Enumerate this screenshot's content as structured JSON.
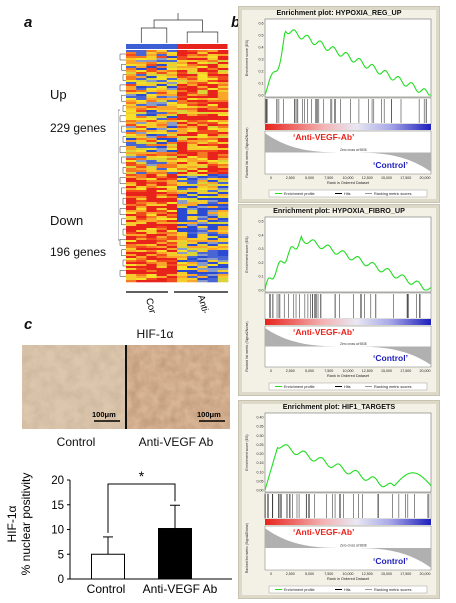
{
  "panels": {
    "a": "a",
    "b": "b",
    "c": "c"
  },
  "heatmap": {
    "up_label": "Up",
    "up_count": "229 genes",
    "down_label": "Down",
    "down_count": "196 genes",
    "group_control": "Control",
    "group_treated": "Anti-VEGF Ab",
    "colors": {
      "high": "#e8231b",
      "mid": "#f6e02a",
      "low": "#2a4bd1"
    }
  },
  "gsea": [
    {
      "title": "Enrichment plot: HYPOXIA_REG_UP",
      "yaxis_label": "Enrichment score (ES)",
      "yticks": [
        "0.6",
        "0.5",
        "0.4",
        "0.3",
        "0.2",
        "0.1",
        "0.0"
      ],
      "ranked_label": "Ranked list metric (Signal2Noise)",
      "left_tag": "‘Anti-VEGF-Ab’",
      "right_tag": "‘Control’",
      "zero_cross": "Zero cross at 9838",
      "xticks": [
        "0",
        "2,500",
        "5,000",
        "7,500",
        "10,000",
        "12,500",
        "15,000",
        "17,500",
        "20,000"
      ],
      "xlabel": "Rank in Ordered Dataset",
      "legend": [
        "Enrichment profile",
        "Hits",
        "Ranking metric scores"
      ]
    },
    {
      "title": "Enrichment plot: HYPOXIA_FIBRO_UP",
      "yaxis_label": "Enrichment score (ES)",
      "yticks": [
        "0.5",
        "0.4",
        "0.3",
        "0.2",
        "0.1",
        "0.0"
      ],
      "ranked_label": "Ranked list metric (Signal2Noise)",
      "left_tag": "‘Anti-VEGF-Ab’",
      "right_tag": "‘Control’",
      "zero_cross": "Zero cross at 9838",
      "xticks": [
        "0",
        "2,500",
        "5,000",
        "7,500",
        "10,000",
        "12,500",
        "15,000",
        "17,500",
        "20,000"
      ],
      "xlabel": "Rank in Ordered Dataset",
      "legend": [
        "Enrichment profile",
        "Hits",
        "Ranking metric scores"
      ]
    },
    {
      "title": "Enrichment plot: HIF1_TARGETS",
      "yaxis_label": "Enrichment score (ES)",
      "yticks": [
        "0.40",
        "0.35",
        "0.30",
        "0.25",
        "0.20",
        "0.15",
        "0.10",
        "0.05",
        "0.00"
      ],
      "ranked_label": "Ranked list metric (Signal2Noise)",
      "left_tag": "‘Anti-VEGF-Ab’",
      "right_tag": "‘Control’",
      "zero_cross": "Zero cross at 9838",
      "xticks": [
        "0",
        "2,500",
        "5,000",
        "7,500",
        "10,000",
        "12,500",
        "15,000",
        "17,500",
        "20,000"
      ],
      "xlabel": "Rank in Ordered Dataset",
      "legend": [
        "Enrichment profile",
        "Hits",
        "Ranking metric scores"
      ]
    }
  ],
  "histology": {
    "title": "HIF-1α",
    "scale_left": "100μm",
    "scale_right": "100μm",
    "label_left": "Control",
    "label_right": "Anti-VEGF Ab"
  },
  "chart_data": {
    "type": "bar",
    "categories": [
      "Control",
      "Anti-VEGF Ab"
    ],
    "values": [
      5,
      10.2
    ],
    "errors": [
      3.5,
      4.7
    ],
    "colors": [
      "#ffffff",
      "#000000"
    ],
    "ylabel_line1": "HIF-1α",
    "ylabel_line2": "% nuclear positivity",
    "ylim": [
      0,
      20
    ],
    "yticks": [
      "0",
      "5",
      "10",
      "15",
      "20"
    ],
    "significance": "*"
  }
}
